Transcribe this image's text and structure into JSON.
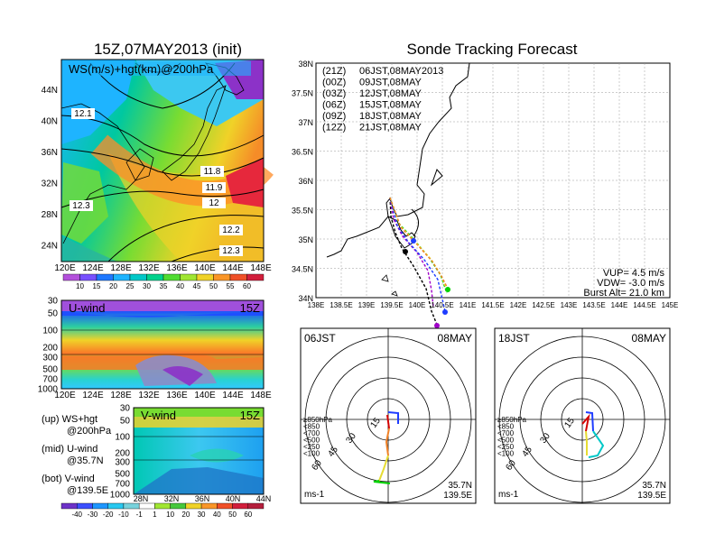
{
  "left_panel": {
    "title": "15Z,07MAY2013 (init)",
    "ws_label": "WS(m/s)+hgt(km)@200hPa",
    "lat_labels": [
      "44N",
      "40N",
      "36N",
      "32N",
      "28N",
      "24N"
    ],
    "lon_labels": [
      "120E",
      "124E",
      "128E",
      "132E",
      "136E",
      "140E",
      "144E",
      "148E"
    ],
    "contour_labels": [
      "12.1",
      "11.8",
      "11.9",
      "12",
      "12.3",
      "12.2",
      "12.3"
    ],
    "ws_colorbar": [
      "10",
      "15",
      "20",
      "25",
      "30",
      "35",
      "40",
      "45",
      "50",
      "55",
      "60"
    ],
    "u_wind": {
      "label": "U-wind",
      "time": "15Z",
      "levels": [
        "30",
        "50",
        "100",
        "200",
        "300",
        "500",
        "700",
        "1000"
      ],
      "lon_labels": [
        "120E",
        "124E",
        "128E",
        "132E",
        "136E",
        "140E",
        "144E",
        "148E"
      ]
    },
    "v_wind": {
      "label": "V-wind",
      "time": "15Z",
      "levels": [
        "30",
        "50",
        "100",
        "200",
        "300",
        "500",
        "700",
        "1000"
      ],
      "lat_labels": [
        "28N",
        "32N",
        "36N",
        "40N",
        "44N"
      ]
    },
    "legend_lines": [
      [
        "(up) WS+hgt",
        "@200hPa"
      ],
      [
        "(mid) U-wind",
        "@35.7N"
      ],
      [
        "(bot) V-wind",
        "@139.5E"
      ]
    ],
    "wind_colorbar": [
      "-40",
      "-30",
      "-20",
      "-10",
      "-1",
      "1",
      "10",
      "20",
      "30",
      "40",
      "50",
      "60"
    ]
  },
  "track_panel": {
    "title": "Sonde Tracking Forecast",
    "launches": [
      {
        "utc": "(21Z)",
        "jst": "06JST,08MAY2013",
        "color": "#000000"
      },
      {
        "utc": "(00Z)",
        "jst": "09JST,08MAY",
        "color": "#a000c8"
      },
      {
        "utc": "(03Z)",
        "jst": "12JST,08MAY",
        "color": "#1e3cff"
      },
      {
        "utc": "(06Z)",
        "jst": "15JST,08MAY",
        "color": "#00d200"
      },
      {
        "utc": "(09Z)",
        "jst": "18JST,08MAY",
        "color": "#e6dc32"
      },
      {
        "utc": "(12Z)",
        "jst": "21JST,08MAY",
        "color": "#f08228"
      }
    ],
    "lat_labels": [
      "38N",
      "37.5N",
      "37N",
      "36.5N",
      "36N",
      "35.5N",
      "35N",
      "34.5N",
      "34N"
    ],
    "lon_labels": [
      "138E",
      "138.5E",
      "139E",
      "139.5E",
      "140E",
      "140.5E",
      "141E",
      "141.5E",
      "142E",
      "142.5E",
      "143E",
      "143.5E",
      "144E",
      "144.5E",
      "145E"
    ],
    "params": [
      "VUP= 4.5 m/s",
      "VDW= -3.0 m/s",
      "Burst Alt= 21.0 km"
    ]
  },
  "hodographs": [
    {
      "time": "06JST",
      "date": "08MAY",
      "rings": [
        "15",
        "30",
        "45",
        "60"
      ],
      "unit": "ms-1",
      "lat": "35.7N",
      "lon": "139.5E",
      "levels": [
        {
          "t": "≥850hPa",
          "c": "#d20000"
        },
        {
          "t": "<850",
          "c": "#f08228"
        },
        {
          "t": "<700",
          "c": "#e6dc32"
        },
        {
          "t": "<500",
          "c": "#00d200"
        },
        {
          "t": "<250",
          "c": "#00c8c8"
        },
        {
          "t": "<100",
          "c": "#1e3cff"
        }
      ]
    },
    {
      "time": "18JST",
      "date": "08MAY",
      "rings": [
        "15",
        "30",
        "45",
        "60"
      ],
      "unit": "ms-1",
      "lat": "35.7N",
      "lon": "139.5E",
      "levels": [
        {
          "t": "≥850hPa",
          "c": "#d20000"
        },
        {
          "t": "<850",
          "c": "#f08228"
        },
        {
          "t": "<700",
          "c": "#e6dc32"
        },
        {
          "t": "<500",
          "c": "#00d200"
        },
        {
          "t": "<250",
          "c": "#00c8c8"
        },
        {
          "t": "<100",
          "c": "#1e3cff"
        }
      ]
    }
  ]
}
